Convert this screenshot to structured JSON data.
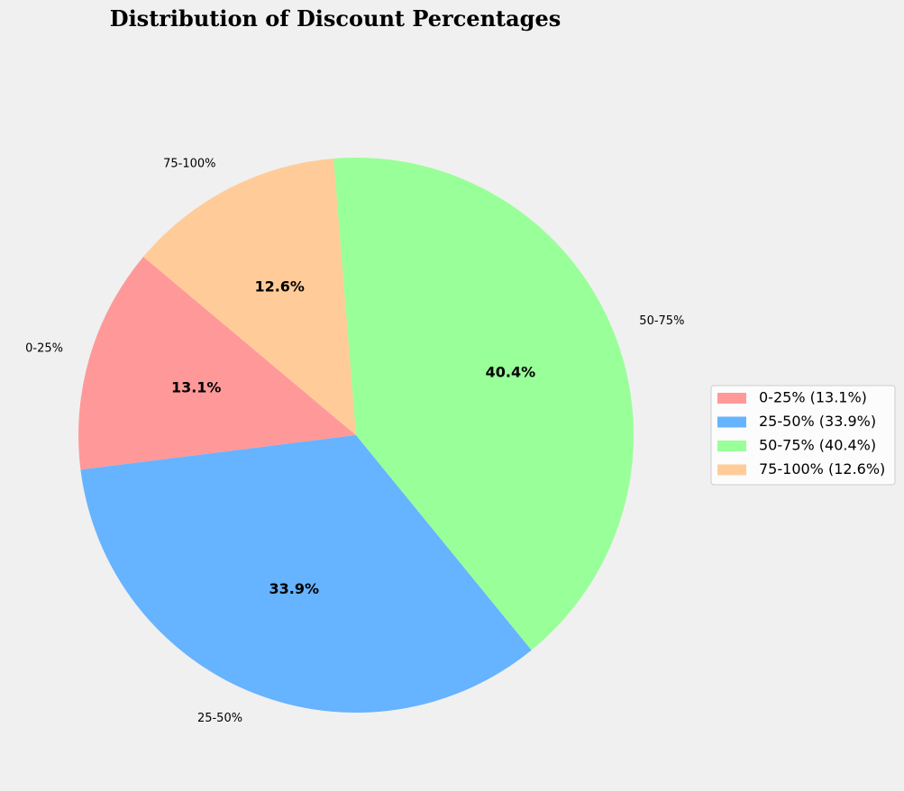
{
  "chart_data": {
    "type": "pie",
    "title": "Distribution of Discount Percentages",
    "categories": [
      "0-25%",
      "25-50%",
      "50-75%",
      "75-100%"
    ],
    "values": [
      13.1,
      33.9,
      40.4,
      12.6
    ],
    "slice_labels": [
      "0-25%",
      "25-50%",
      "50-75%",
      "75-100%"
    ],
    "percent_labels": [
      "13.1%",
      "33.9%",
      "40.4%",
      "12.6%"
    ],
    "legend_entries": [
      "0-25% (13.1%)",
      "25-50% (33.9%)",
      "50-75% (40.4%)",
      "75-100% (12.6%)"
    ],
    "colors": [
      "#ff9999",
      "#66b3ff",
      "#99ff99",
      "#ffcc99"
    ],
    "start_angle_deg": 140,
    "legend_position": "center-right"
  }
}
